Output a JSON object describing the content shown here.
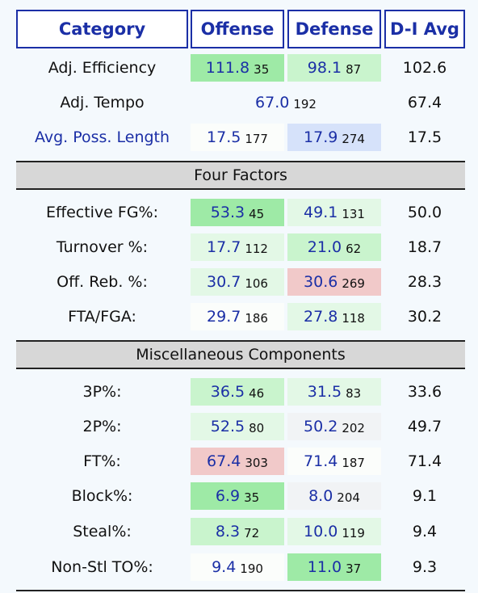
{
  "headers": {
    "category": "Category",
    "offense": "Offense",
    "defense": "Defense",
    "avg": "D-I Avg"
  },
  "top_rows": [
    {
      "label": "Adj. Efficiency",
      "off_val": "111.8",
      "off_rank": "35",
      "def_val": "98.1",
      "def_rank": "87",
      "avg": "102.6"
    },
    {
      "label": "Adj. Tempo",
      "merged_val": "67.0",
      "merged_rank": "192",
      "avg": "67.4"
    },
    {
      "label": "Avg. Poss. Length",
      "off_val": "17.5",
      "off_rank": "177",
      "def_val": "17.9",
      "def_rank": "274",
      "avg": "17.5"
    }
  ],
  "sections": {
    "four_factors": "Four Factors",
    "misc": "Miscellaneous Components"
  },
  "four_factors": [
    {
      "label": "Effective FG%:",
      "off_val": "53.3",
      "off_rank": "45",
      "def_val": "49.1",
      "def_rank": "131",
      "avg": "50.0"
    },
    {
      "label": "Turnover %:",
      "off_val": "17.7",
      "off_rank": "112",
      "def_val": "21.0",
      "def_rank": "62",
      "avg": "18.7"
    },
    {
      "label": "Off. Reb. %:",
      "off_val": "30.7",
      "off_rank": "106",
      "def_val": "30.6",
      "def_rank": "269",
      "avg": "28.3"
    },
    {
      "label": "FTA/FGA:",
      "off_val": "29.7",
      "off_rank": "186",
      "def_val": "27.8",
      "def_rank": "118",
      "avg": "30.2"
    }
  ],
  "misc": [
    {
      "label": "3P%:",
      "off_val": "36.5",
      "off_rank": "46",
      "def_val": "31.5",
      "def_rank": "83",
      "avg": "33.6"
    },
    {
      "label": "2P%:",
      "off_val": "52.5",
      "off_rank": "80",
      "def_val": "50.2",
      "def_rank": "202",
      "avg": "49.7"
    },
    {
      "label": "FT%:",
      "off_val": "67.4",
      "off_rank": "303",
      "def_val": "71.4",
      "def_rank": "187",
      "avg": "71.4"
    },
    {
      "label": "Block%:",
      "off_val": "6.9",
      "off_rank": "35",
      "def_val": "8.0",
      "def_rank": "204",
      "avg": "9.1"
    },
    {
      "label": "Steal%:",
      "off_val": "8.3",
      "off_rank": "72",
      "def_val": "10.0",
      "def_rank": "119",
      "avg": "9.4"
    },
    {
      "label": "Non-Stl TO%:",
      "off_val": "9.4",
      "off_rank": "190",
      "def_val": "11.0",
      "def_rank": "37",
      "avg": "9.3"
    }
  ],
  "colors": {
    "header_blue": "#1b2fa6",
    "strong_green": "#9eeaa6",
    "light_green": "#c9f4cd",
    "pale_green": "#e3f8e6",
    "red": "#f1c9c9",
    "blue_tint": "#d6e2fa",
    "section_gray": "#d7d7d7"
  }
}
